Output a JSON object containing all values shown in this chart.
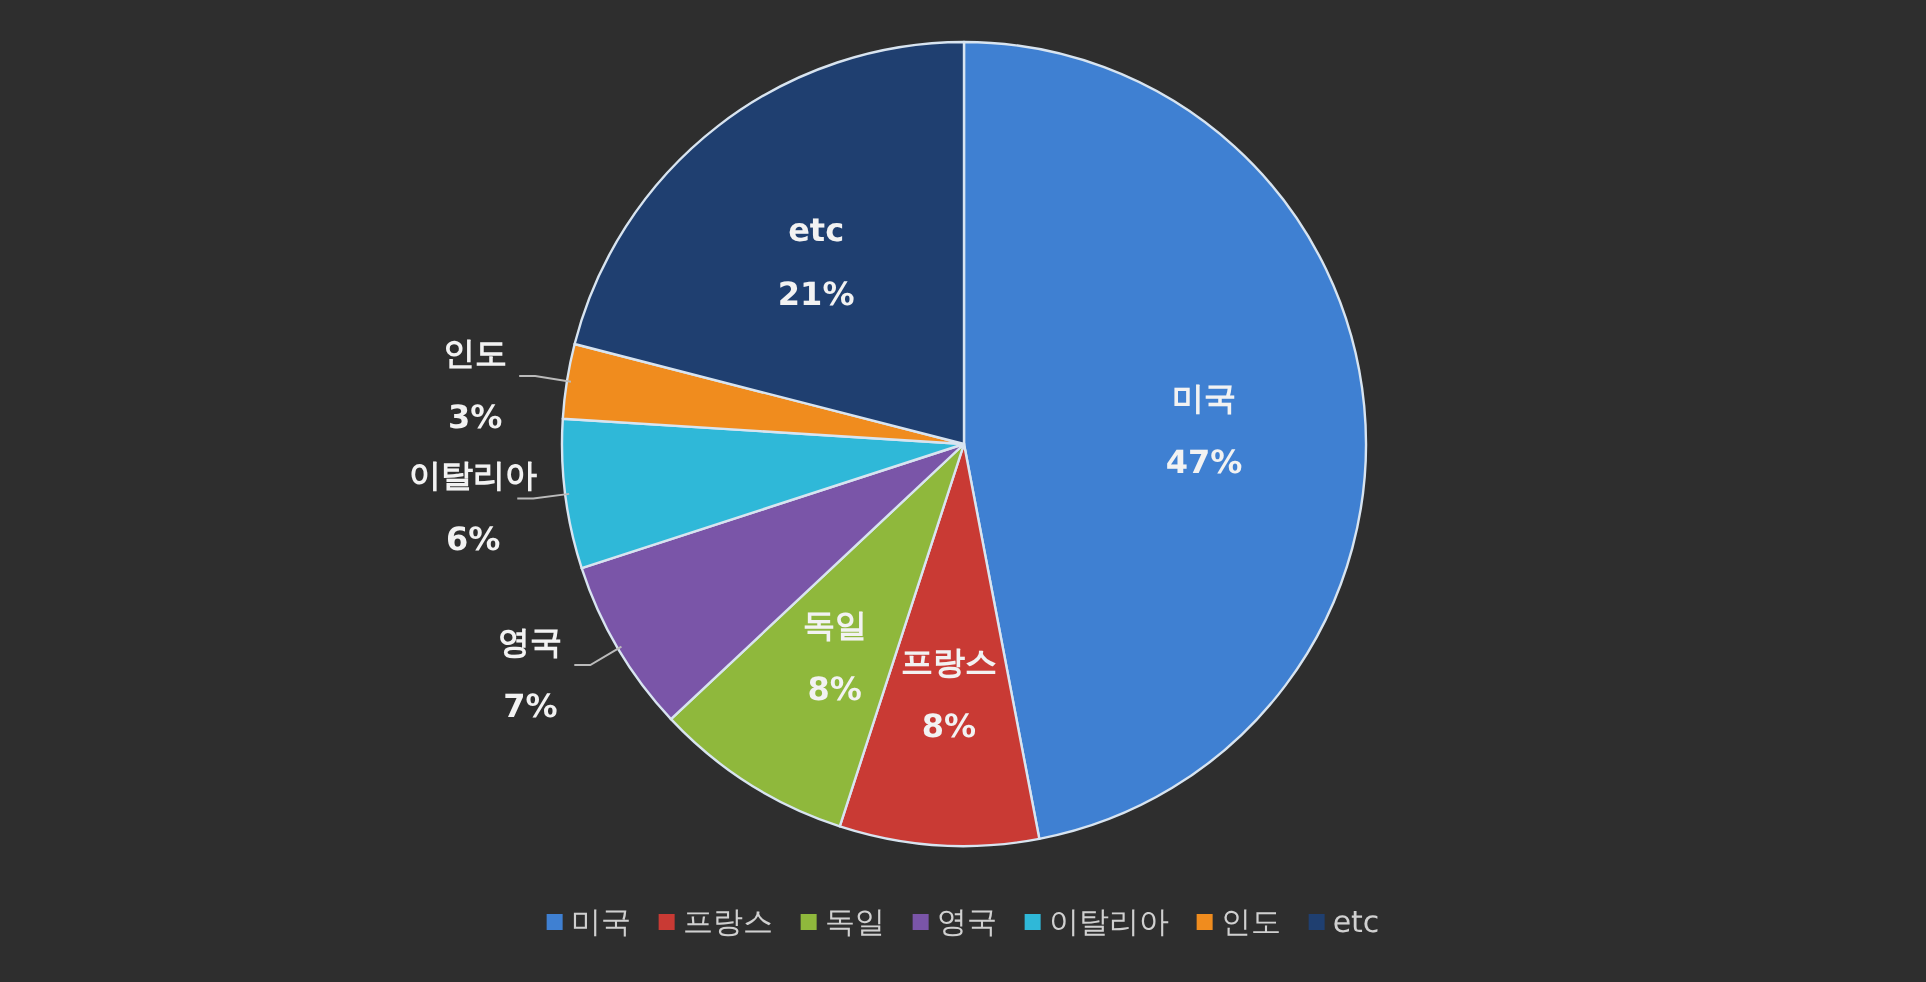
{
  "chart_data": {
    "type": "pie",
    "categories": [
      "미국",
      "프랑스",
      "독일",
      "영국",
      "이탈리아",
      "인도",
      "etc"
    ],
    "values": [
      47,
      8,
      8,
      7,
      6,
      3,
      21
    ],
    "colors": [
      "#3f80d2",
      "#c93a34",
      "#8fb83c",
      "#7a55a8",
      "#2fb8d8",
      "#f08c1e",
      "#1f3f70"
    ],
    "value_labels": [
      "47%",
      "8%",
      "8%",
      "7%",
      "6%",
      "3%",
      "21%"
    ],
    "legend": "bottom"
  }
}
